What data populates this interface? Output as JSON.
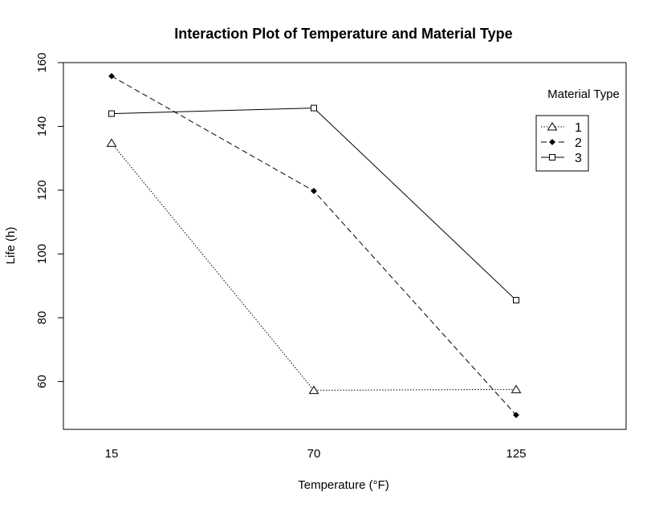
{
  "chart_data": {
    "type": "line",
    "title": "Interaction Plot of Temperature and Material Type",
    "xlabel": "Temperature (°F)",
    "ylabel": "Life (h)",
    "categories": [
      "15",
      "70",
      "125"
    ],
    "ylim": [
      45,
      160
    ],
    "yticks": [
      60,
      80,
      100,
      120,
      140,
      160
    ],
    "grid": false,
    "legend": {
      "title": "Material Type",
      "position": "top-right"
    },
    "series": [
      {
        "name": "1",
        "values": [
          134.75,
          57.25,
          57.5
        ],
        "marker": "triangle",
        "line": "dotted"
      },
      {
        "name": "2",
        "values": [
          155.75,
          119.75,
          49.5
        ],
        "marker": "diamond",
        "line": "dashed"
      },
      {
        "name": "3",
        "values": [
          144.0,
          145.75,
          85.5
        ],
        "marker": "square",
        "line": "solid"
      }
    ]
  }
}
